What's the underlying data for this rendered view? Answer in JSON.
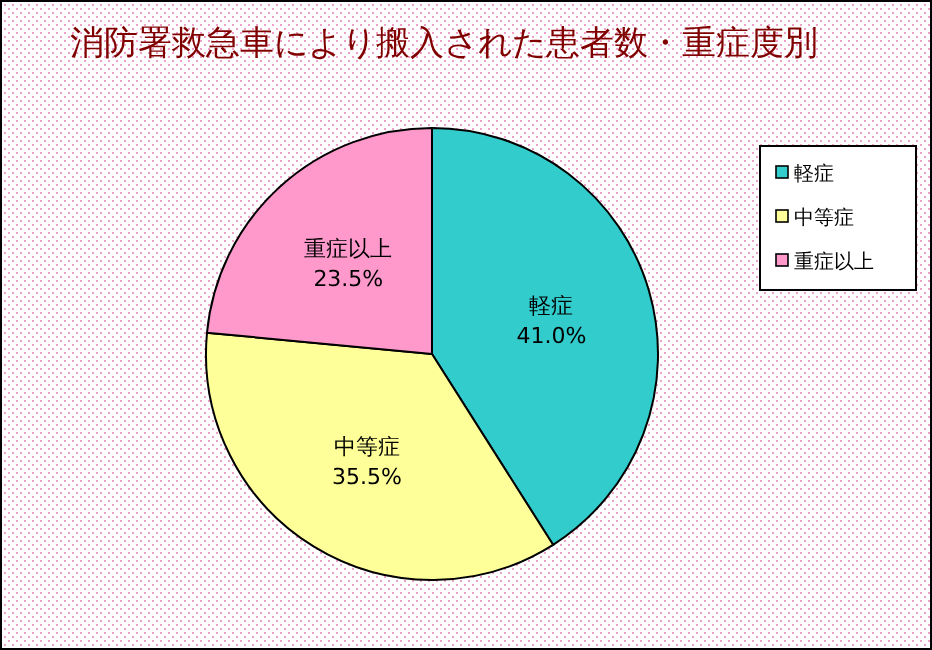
{
  "chart_data": {
    "type": "pie",
    "title": "消防署救急車により搬入された患者数・重症度別",
    "categories": [
      "軽症",
      "中等症",
      "重症以上"
    ],
    "values": [
      41.0,
      35.5,
      23.5
    ],
    "value_labels": [
      "41.0%",
      "35.5%",
      "23.5%"
    ],
    "colors": [
      "#33cccc",
      "#ffff99",
      "#ff99cc"
    ],
    "legend": "top right"
  }
}
